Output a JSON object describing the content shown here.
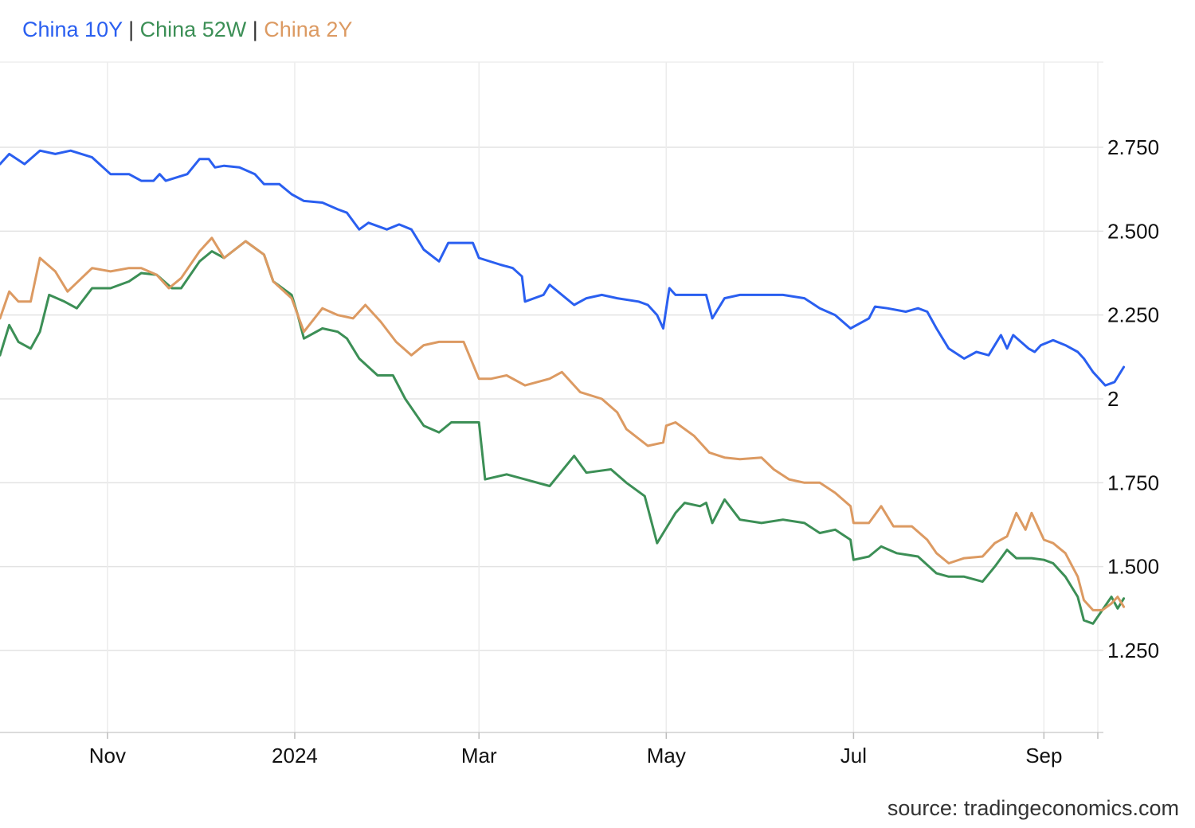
{
  "legend": {
    "separator": "|",
    "items": [
      {
        "name": "China 10Y",
        "color": "#2a5ff0"
      },
      {
        "name": "China 52W",
        "color": "#3c8f56"
      },
      {
        "name": "China 2Y",
        "color": "#dc9a62"
      }
    ]
  },
  "source": "source: tradingeconomics.com",
  "chart_data": {
    "type": "line",
    "title": "",
    "xlabel": "",
    "ylabel": "",
    "x_range": [
      "2023-09-27",
      "2024-09-29"
    ],
    "ylim": [
      1.0,
      3.0
    ],
    "grid": true,
    "legend_position": "top-left",
    "y_ticks": [
      {
        "value": 2.75,
        "label": "2.750"
      },
      {
        "value": 2.5,
        "label": "2.500"
      },
      {
        "value": 2.25,
        "label": "2.250"
      },
      {
        "value": 2.0,
        "label": "2"
      },
      {
        "value": 1.75,
        "label": "1.750"
      },
      {
        "value": 1.5,
        "label": "1.500"
      },
      {
        "value": 1.25,
        "label": "1.250"
      }
    ],
    "x_ticks": [
      {
        "date": "2023-11-01",
        "label": "Nov"
      },
      {
        "date": "2024-01-01",
        "label": "2024"
      },
      {
        "date": "2024-03-01",
        "label": "Mar"
      },
      {
        "date": "2024-05-01",
        "label": "May"
      },
      {
        "date": "2024-07-01",
        "label": "Jul"
      },
      {
        "date": "2024-09-01",
        "label": "Sep"
      }
    ],
    "series": [
      {
        "name": "China 10Y",
        "color": "#2a5ff0",
        "points": [
          [
            "2023-09-27",
            2.7
          ],
          [
            "2023-09-30",
            2.73
          ],
          [
            "2023-10-05",
            2.7
          ],
          [
            "2023-10-10",
            2.74
          ],
          [
            "2023-10-15",
            2.73
          ],
          [
            "2023-10-20",
            2.74
          ],
          [
            "2023-10-27",
            2.72
          ],
          [
            "2023-11-02",
            2.67
          ],
          [
            "2023-11-08",
            2.67
          ],
          [
            "2023-11-12",
            2.65
          ],
          [
            "2023-11-16",
            2.65
          ],
          [
            "2023-11-18",
            2.67
          ],
          [
            "2023-11-20",
            2.65
          ],
          [
            "2023-11-27",
            2.67
          ],
          [
            "2023-12-01",
            2.715
          ],
          [
            "2023-12-04",
            2.715
          ],
          [
            "2023-12-06",
            2.69
          ],
          [
            "2023-12-09",
            2.695
          ],
          [
            "2023-12-14",
            2.69
          ],
          [
            "2023-12-19",
            2.67
          ],
          [
            "2023-12-22",
            2.64
          ],
          [
            "2023-12-27",
            2.64
          ],
          [
            "2023-12-31",
            2.61
          ],
          [
            "2024-01-04",
            2.59
          ],
          [
            "2024-01-10",
            2.585
          ],
          [
            "2024-01-15",
            2.565
          ],
          [
            "2024-01-18",
            2.555
          ],
          [
            "2024-01-22",
            2.505
          ],
          [
            "2024-01-25",
            2.525
          ],
          [
            "2024-01-31",
            2.505
          ],
          [
            "2024-02-04",
            2.52
          ],
          [
            "2024-02-08",
            2.505
          ],
          [
            "2024-02-12",
            2.445
          ],
          [
            "2024-02-17",
            2.41
          ],
          [
            "2024-02-20",
            2.465
          ],
          [
            "2024-02-23",
            2.465
          ],
          [
            "2024-02-28",
            2.465
          ],
          [
            "2024-03-01",
            2.42
          ],
          [
            "2024-03-08",
            2.4
          ],
          [
            "2024-03-12",
            2.39
          ],
          [
            "2024-03-15",
            2.365
          ],
          [
            "2024-03-16",
            2.29
          ],
          [
            "2024-03-22",
            2.31
          ],
          [
            "2024-03-24",
            2.34
          ],
          [
            "2024-04-01",
            2.28
          ],
          [
            "2024-04-05",
            2.3
          ],
          [
            "2024-04-10",
            2.31
          ],
          [
            "2024-04-15",
            2.3
          ],
          [
            "2024-04-22",
            2.29
          ],
          [
            "2024-04-25",
            2.28
          ],
          [
            "2024-04-28",
            2.25
          ],
          [
            "2024-04-30",
            2.21
          ],
          [
            "2024-05-02",
            2.33
          ],
          [
            "2024-05-04",
            2.31
          ],
          [
            "2024-05-08",
            2.31
          ],
          [
            "2024-05-14",
            2.31
          ],
          [
            "2024-05-16",
            2.24
          ],
          [
            "2024-05-20",
            2.3
          ],
          [
            "2024-05-25",
            2.31
          ],
          [
            "2024-06-01",
            2.31
          ],
          [
            "2024-06-08",
            2.31
          ],
          [
            "2024-06-15",
            2.3
          ],
          [
            "2024-06-20",
            2.27
          ],
          [
            "2024-06-25",
            2.25
          ],
          [
            "2024-06-30",
            2.21
          ],
          [
            "2024-07-06",
            2.24
          ],
          [
            "2024-07-08",
            2.275
          ],
          [
            "2024-07-12",
            2.27
          ],
          [
            "2024-07-18",
            2.26
          ],
          [
            "2024-07-22",
            2.27
          ],
          [
            "2024-07-25",
            2.26
          ],
          [
            "2024-07-28",
            2.21
          ],
          [
            "2024-08-01",
            2.15
          ],
          [
            "2024-08-06",
            2.12
          ],
          [
            "2024-08-10",
            2.14
          ],
          [
            "2024-08-14",
            2.13
          ],
          [
            "2024-08-18",
            2.19
          ],
          [
            "2024-08-20",
            2.15
          ],
          [
            "2024-08-22",
            2.19
          ],
          [
            "2024-08-27",
            2.15
          ],
          [
            "2024-08-29",
            2.14
          ],
          [
            "2024-08-31",
            2.16
          ],
          [
            "2024-09-04",
            2.175
          ],
          [
            "2024-09-08",
            2.16
          ],
          [
            "2024-09-12",
            2.14
          ],
          [
            "2024-09-14",
            2.12
          ],
          [
            "2024-09-17",
            2.08
          ],
          [
            "2024-09-21",
            2.04
          ],
          [
            "2024-09-24",
            2.05
          ],
          [
            "2024-09-27",
            2.095
          ]
        ]
      },
      {
        "name": "China 52W",
        "color": "#3c8f56",
        "points": [
          [
            "2023-09-27",
            2.13
          ],
          [
            "2023-09-30",
            2.22
          ],
          [
            "2023-10-03",
            2.17
          ],
          [
            "2023-10-07",
            2.15
          ],
          [
            "2023-10-10",
            2.2
          ],
          [
            "2023-10-13",
            2.31
          ],
          [
            "2023-10-18",
            2.29
          ],
          [
            "2023-10-22",
            2.27
          ],
          [
            "2023-10-27",
            2.33
          ],
          [
            "2023-11-02",
            2.33
          ],
          [
            "2023-11-08",
            2.35
          ],
          [
            "2023-11-12",
            2.375
          ],
          [
            "2023-11-17",
            2.37
          ],
          [
            "2023-11-22",
            2.33
          ],
          [
            "2023-11-25",
            2.33
          ],
          [
            "2023-12-01",
            2.41
          ],
          [
            "2023-12-05",
            2.44
          ],
          [
            "2023-12-09",
            2.42
          ],
          [
            "2023-12-16",
            2.47
          ],
          [
            "2023-12-22",
            2.43
          ],
          [
            "2023-12-25",
            2.35
          ],
          [
            "2023-12-31",
            2.31
          ],
          [
            "2024-01-02",
            2.25
          ],
          [
            "2024-01-04",
            2.18
          ],
          [
            "2024-01-10",
            2.21
          ],
          [
            "2024-01-15",
            2.2
          ],
          [
            "2024-01-18",
            2.18
          ],
          [
            "2024-01-22",
            2.12
          ],
          [
            "2024-01-28",
            2.07
          ],
          [
            "2024-02-02",
            2.07
          ],
          [
            "2024-02-06",
            2.0
          ],
          [
            "2024-02-12",
            1.92
          ],
          [
            "2024-02-17",
            1.9
          ],
          [
            "2024-02-21",
            1.93
          ],
          [
            "2024-02-25",
            1.93
          ],
          [
            "2024-03-01",
            1.93
          ],
          [
            "2024-03-03",
            1.76
          ],
          [
            "2024-03-10",
            1.775
          ],
          [
            "2024-03-16",
            1.76
          ],
          [
            "2024-03-24",
            1.74
          ],
          [
            "2024-04-01",
            1.83
          ],
          [
            "2024-04-05",
            1.78
          ],
          [
            "2024-04-13",
            1.79
          ],
          [
            "2024-04-18",
            1.75
          ],
          [
            "2024-04-24",
            1.71
          ],
          [
            "2024-04-28",
            1.57
          ],
          [
            "2024-04-30",
            1.6
          ],
          [
            "2024-05-04",
            1.66
          ],
          [
            "2024-05-07",
            1.69
          ],
          [
            "2024-05-12",
            1.68
          ],
          [
            "2024-05-14",
            1.69
          ],
          [
            "2024-05-16",
            1.63
          ],
          [
            "2024-05-20",
            1.7
          ],
          [
            "2024-05-25",
            1.64
          ],
          [
            "2024-06-01",
            1.63
          ],
          [
            "2024-06-08",
            1.64
          ],
          [
            "2024-06-15",
            1.63
          ],
          [
            "2024-06-20",
            1.6
          ],
          [
            "2024-06-25",
            1.61
          ],
          [
            "2024-06-30",
            1.58
          ],
          [
            "2024-07-01",
            1.52
          ],
          [
            "2024-07-06",
            1.53
          ],
          [
            "2024-07-10",
            1.56
          ],
          [
            "2024-07-15",
            1.54
          ],
          [
            "2024-07-22",
            1.53
          ],
          [
            "2024-07-28",
            1.48
          ],
          [
            "2024-08-01",
            1.47
          ],
          [
            "2024-08-06",
            1.47
          ],
          [
            "2024-08-12",
            1.455
          ],
          [
            "2024-08-16",
            1.5
          ],
          [
            "2024-08-20",
            1.55
          ],
          [
            "2024-08-23",
            1.525
          ],
          [
            "2024-08-28",
            1.525
          ],
          [
            "2024-09-01",
            1.52
          ],
          [
            "2024-09-04",
            1.51
          ],
          [
            "2024-09-08",
            1.47
          ],
          [
            "2024-09-12",
            1.41
          ],
          [
            "2024-09-14",
            1.34
          ],
          [
            "2024-09-17",
            1.33
          ],
          [
            "2024-09-20",
            1.37
          ],
          [
            "2024-09-23",
            1.41
          ],
          [
            "2024-09-25",
            1.375
          ],
          [
            "2024-09-27",
            1.405
          ]
        ]
      },
      {
        "name": "China 2Y",
        "color": "#dc9a62",
        "points": [
          [
            "2023-09-27",
            2.24
          ],
          [
            "2023-09-30",
            2.32
          ],
          [
            "2023-10-03",
            2.29
          ],
          [
            "2023-10-07",
            2.29
          ],
          [
            "2023-10-10",
            2.42
          ],
          [
            "2023-10-15",
            2.38
          ],
          [
            "2023-10-19",
            2.32
          ],
          [
            "2023-10-27",
            2.39
          ],
          [
            "2023-11-02",
            2.38
          ],
          [
            "2023-11-08",
            2.39
          ],
          [
            "2023-11-12",
            2.39
          ],
          [
            "2023-11-17",
            2.37
          ],
          [
            "2023-11-21",
            2.33
          ],
          [
            "2023-11-25",
            2.36
          ],
          [
            "2023-12-01",
            2.44
          ],
          [
            "2023-12-05",
            2.48
          ],
          [
            "2023-12-09",
            2.42
          ],
          [
            "2023-12-16",
            2.47
          ],
          [
            "2023-12-22",
            2.43
          ],
          [
            "2023-12-25",
            2.35
          ],
          [
            "2023-12-31",
            2.3
          ],
          [
            "2024-01-04",
            2.2
          ],
          [
            "2024-01-10",
            2.27
          ],
          [
            "2024-01-15",
            2.25
          ],
          [
            "2024-01-20",
            2.24
          ],
          [
            "2024-01-24",
            2.28
          ],
          [
            "2024-01-29",
            2.23
          ],
          [
            "2024-02-03",
            2.17
          ],
          [
            "2024-02-08",
            2.13
          ],
          [
            "2024-02-12",
            2.16
          ],
          [
            "2024-02-17",
            2.17
          ],
          [
            "2024-02-25",
            2.17
          ],
          [
            "2024-03-01",
            2.06
          ],
          [
            "2024-03-05",
            2.06
          ],
          [
            "2024-03-10",
            2.07
          ],
          [
            "2024-03-16",
            2.04
          ],
          [
            "2024-03-24",
            2.06
          ],
          [
            "2024-03-28",
            2.08
          ],
          [
            "2024-04-03",
            2.02
          ],
          [
            "2024-04-10",
            2.0
          ],
          [
            "2024-04-15",
            1.96
          ],
          [
            "2024-04-18",
            1.91
          ],
          [
            "2024-04-25",
            1.86
          ],
          [
            "2024-04-30",
            1.87
          ],
          [
            "2024-05-01",
            1.92
          ],
          [
            "2024-05-04",
            1.93
          ],
          [
            "2024-05-10",
            1.89
          ],
          [
            "2024-05-15",
            1.84
          ],
          [
            "2024-05-20",
            1.825
          ],
          [
            "2024-05-25",
            1.82
          ],
          [
            "2024-06-01",
            1.825
          ],
          [
            "2024-06-05",
            1.79
          ],
          [
            "2024-06-10",
            1.76
          ],
          [
            "2024-06-15",
            1.75
          ],
          [
            "2024-06-20",
            1.75
          ],
          [
            "2024-06-25",
            1.72
          ],
          [
            "2024-06-30",
            1.68
          ],
          [
            "2024-07-01",
            1.63
          ],
          [
            "2024-07-06",
            1.63
          ],
          [
            "2024-07-10",
            1.68
          ],
          [
            "2024-07-14",
            1.62
          ],
          [
            "2024-07-20",
            1.62
          ],
          [
            "2024-07-25",
            1.58
          ],
          [
            "2024-07-28",
            1.54
          ],
          [
            "2024-08-01",
            1.51
          ],
          [
            "2024-08-06",
            1.525
          ],
          [
            "2024-08-12",
            1.53
          ],
          [
            "2024-08-16",
            1.57
          ],
          [
            "2024-08-20",
            1.59
          ],
          [
            "2024-08-23",
            1.66
          ],
          [
            "2024-08-26",
            1.61
          ],
          [
            "2024-08-28",
            1.66
          ],
          [
            "2024-09-01",
            1.58
          ],
          [
            "2024-09-04",
            1.57
          ],
          [
            "2024-09-08",
            1.54
          ],
          [
            "2024-09-12",
            1.47
          ],
          [
            "2024-09-14",
            1.4
          ],
          [
            "2024-09-17",
            1.37
          ],
          [
            "2024-09-20",
            1.37
          ],
          [
            "2024-09-23",
            1.39
          ],
          [
            "2024-09-25",
            1.41
          ],
          [
            "2024-09-27",
            1.38
          ]
        ]
      }
    ]
  }
}
